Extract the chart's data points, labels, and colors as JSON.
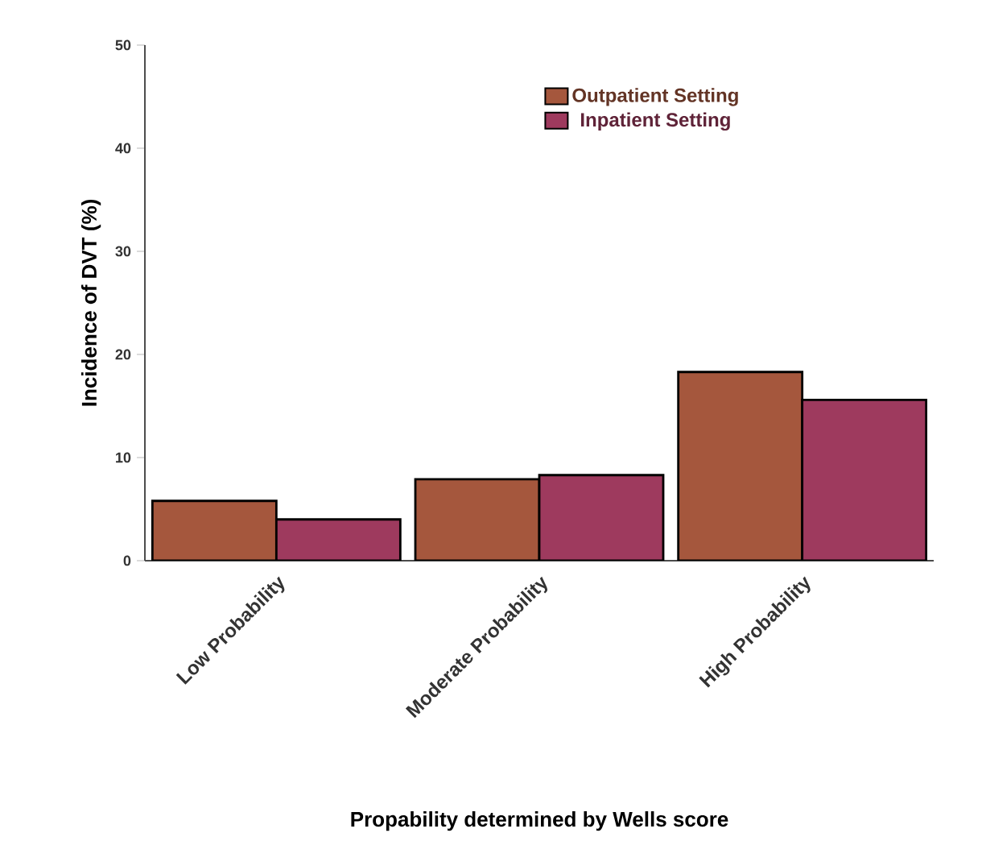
{
  "chart_data": {
    "type": "bar",
    "xlabel": "Propability determined by Wells score",
    "ylabel": "Incidence of DVT (%)",
    "categories": [
      "Low Probability",
      "Moderate Probability",
      "High Probability"
    ],
    "series": [
      {
        "name": "Outpatient Setting",
        "color": "#a5573d",
        "values": [
          5.8,
          7.9,
          18.3
        ]
      },
      {
        "name": "Inpatient Setting",
        "color": "#9e3a5e",
        "values": [
          4.0,
          8.3,
          15.6
        ]
      }
    ],
    "ylim": [
      0,
      50
    ],
    "yticks": [
      0,
      10,
      20,
      30,
      40,
      50
    ],
    "legend": "top right",
    "grid": false
  }
}
